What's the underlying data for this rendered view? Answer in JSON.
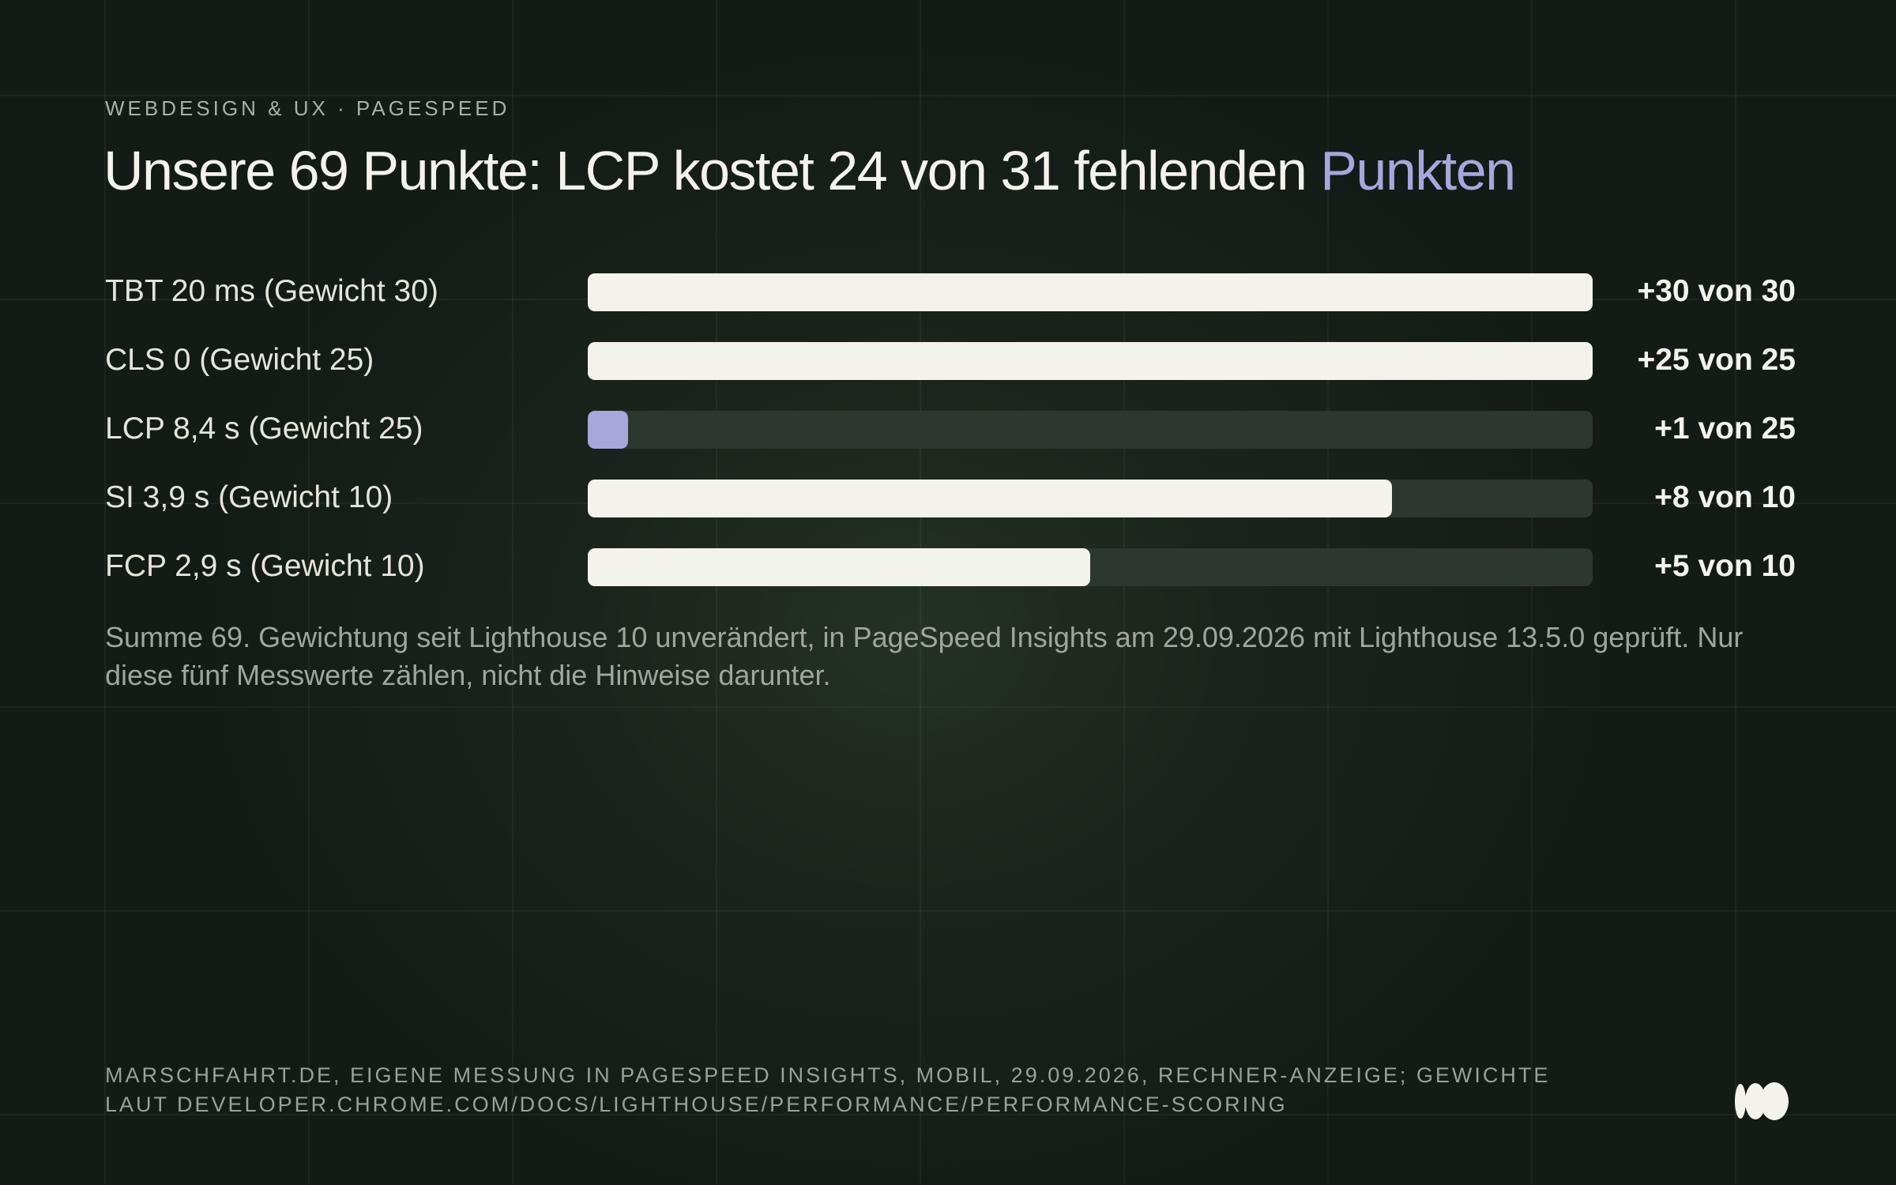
{
  "header": {
    "kicker": "WEBDESIGN & UX · PAGESPEED",
    "title_main": "Unsere 69 Punkte: LCP kostet 24 von 31 fehlenden",
    "title_accent": "Punkten"
  },
  "colors": {
    "background": "#141b17",
    "bar_fill": "#f4f2ec",
    "bar_highlight": "#a9a6dc",
    "bar_track": "#2c3730",
    "accent": "#a9a6dc"
  },
  "chart_data": {
    "type": "bar",
    "orientation": "horizontal",
    "categories": [
      "TBT 20 ms (Gewicht 30)",
      "CLS 0 (Gewicht 25)",
      "LCP 8,4 s (Gewicht 25)",
      "SI 3,9 s (Gewicht 10)",
      "FCP 2,9 s (Gewicht 10)"
    ],
    "values": [
      30,
      25,
      1,
      8,
      5
    ],
    "max_values": [
      30,
      25,
      25,
      10,
      10
    ],
    "value_labels": [
      "+30 von 30",
      "+25 von 25",
      "+1 von 25",
      "+8 von 10",
      "+5 von 10"
    ],
    "highlight_index": 2
  },
  "note": "Summe 69. Gewichtung seit Lighthouse 10 unverändert, in PageSpeed Insights am 29.09.2026 mit Lighthouse 13.5.0 geprüft. Nur diese fünf Messwerte zählen, nicht die Hinweise darunter.",
  "footer": {
    "source": "MARSCHFAHRT.DE, EIGENE MESSUNG IN PAGESPEED INSIGHTS, MOBIL, 29.09.2026, RECHNER-ANZEIGE; GEWICHTE LAUT DEVELOPER.CHROME.COM/DOCS/LIGHTHOUSE/PERFORMANCE/PERFORMANCE-SCORING",
    "logo_icon": "brand-logo-icon"
  }
}
